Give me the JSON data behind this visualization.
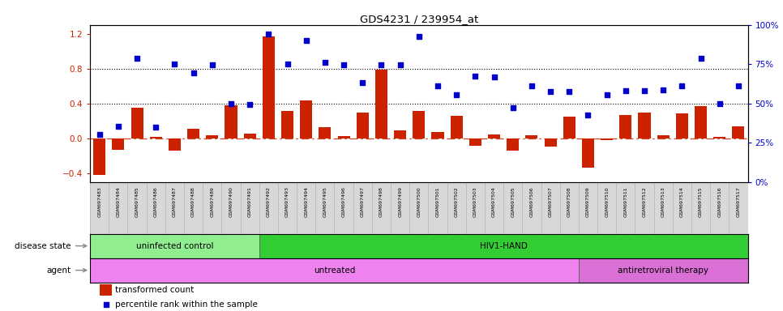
{
  "title": "GDS4231 / 239954_at",
  "samples": [
    "GSM697483",
    "GSM697484",
    "GSM697485",
    "GSM697486",
    "GSM697487",
    "GSM697488",
    "GSM697489",
    "GSM697490",
    "GSM697491",
    "GSM697492",
    "GSM697493",
    "GSM697494",
    "GSM697495",
    "GSM697496",
    "GSM697497",
    "GSM697498",
    "GSM697499",
    "GSM697500",
    "GSM697501",
    "GSM697502",
    "GSM697503",
    "GSM697504",
    "GSM697505",
    "GSM697506",
    "GSM697507",
    "GSM697508",
    "GSM697509",
    "GSM697510",
    "GSM697511",
    "GSM697512",
    "GSM697513",
    "GSM697514",
    "GSM697515",
    "GSM697516",
    "GSM697517"
  ],
  "bar_values": [
    -0.42,
    -0.13,
    0.35,
    0.02,
    -0.14,
    0.11,
    0.04,
    0.38,
    0.06,
    1.17,
    0.32,
    0.44,
    0.13,
    0.03,
    0.3,
    0.79,
    0.09,
    0.32,
    0.07,
    0.26,
    -0.08,
    0.05,
    -0.14,
    0.04,
    -0.09,
    0.25,
    -0.33,
    -0.02,
    0.27,
    0.3,
    0.04,
    0.29,
    0.37,
    0.02,
    0.14
  ],
  "dot_values": [
    0.05,
    0.14,
    0.92,
    0.13,
    0.85,
    0.75,
    0.84,
    0.4,
    0.39,
    1.2,
    0.85,
    1.12,
    0.87,
    0.84,
    0.64,
    0.84,
    0.84,
    1.17,
    0.6,
    0.5,
    0.71,
    0.7,
    0.35,
    0.6,
    0.54,
    0.54,
    0.27,
    0.5,
    0.55,
    0.55,
    0.56,
    0.6,
    0.92,
    0.4,
    0.6
  ],
  "bar_color": "#cc2200",
  "dot_color": "#0000cc",
  "ylim_left": [
    -0.5,
    1.3
  ],
  "yticks_left": [
    -0.4,
    0.0,
    0.4,
    0.8,
    1.2
  ],
  "yticks_right": [
    0,
    25,
    50,
    75,
    100
  ],
  "hlines": [
    0.8,
    0.4
  ],
  "disease_state_groups": [
    {
      "label": "uninfected control",
      "start": 0,
      "end": 9,
      "color": "#90ee90"
    },
    {
      "label": "HIV1-HAND",
      "start": 9,
      "end": 35,
      "color": "#32cd32"
    }
  ],
  "agent_groups": [
    {
      "label": "untreated",
      "start": 0,
      "end": 26,
      "color": "#ee82ee"
    },
    {
      "label": "antiretroviral therapy",
      "start": 26,
      "end": 35,
      "color": "#da70d6"
    }
  ],
  "disease_state_label": "disease state",
  "agent_label": "agent",
  "legend_bar_label": "transformed count",
  "legend_dot_label": "percentile rank within the sample"
}
